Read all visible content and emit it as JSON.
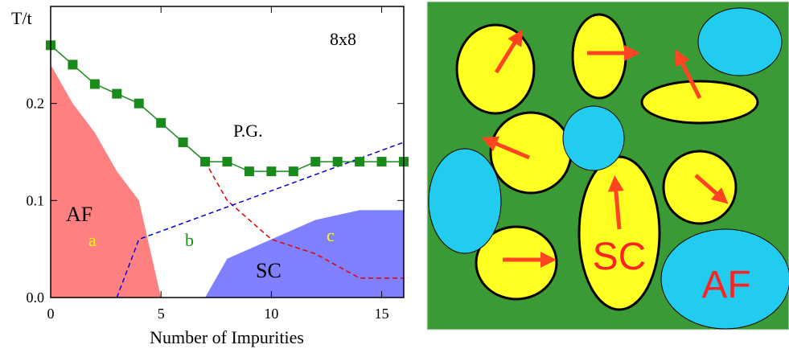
{
  "chart_data": {
    "type": "line",
    "ylabel": "T/t",
    "xlabel": "Number of Impurities",
    "xlim": [
      0,
      16
    ],
    "ylim": [
      0,
      0.3
    ],
    "xticks": [
      0,
      5,
      10,
      15
    ],
    "yticks": [
      {
        "value": 0,
        "label": "0.0"
      },
      0.1,
      0.2
    ],
    "series": [
      {
        "style": "area",
        "color": "#ff8080",
        "x": [
          0,
          0,
          1,
          2,
          3,
          4,
          5
        ],
        "values": [
          0,
          0.24,
          0.2,
          0.17,
          0.13,
          0.1,
          0
        ]
      },
      {
        "style": "area",
        "color": "#8080ff",
        "x": [
          7,
          8,
          10,
          12,
          14,
          16,
          16
        ],
        "values": [
          0,
          0.04,
          0.06,
          0.08,
          0.09,
          0.09,
          0
        ]
      },
      {
        "style": "dashed",
        "color": "#e00000",
        "x": [
          7,
          8,
          10,
          12,
          14,
          16
        ],
        "values": [
          0.14,
          0.1,
          0.06,
          0.045,
          0.02,
          0.02
        ]
      },
      {
        "style": "dashed",
        "color": "#0000dd",
        "x": [
          3,
          4,
          16
        ],
        "values": [
          0,
          0.06,
          0.16
        ]
      },
      {
        "style": "line-markers",
        "color": "#1a8a1a",
        "x": [
          0,
          1,
          2,
          3,
          4,
          5,
          6,
          7,
          8,
          9,
          10,
          11,
          12,
          13,
          14,
          15,
          16
        ],
        "values": [
          0.26,
          0.24,
          0.22,
          0.21,
          0.2,
          0.18,
          0.16,
          0.14,
          0.14,
          0.13,
          0.13,
          0.13,
          0.14,
          0.14,
          0.14,
          0.14,
          0.14
        ]
      }
    ],
    "annotations": [
      {
        "text": "8x8",
        "color": "#000000"
      },
      {
        "text": "P.G.",
        "color": "#000000"
      },
      {
        "text": "AF",
        "color": "#000000"
      },
      {
        "text": "a",
        "color": "#ffff00"
      },
      {
        "text": "b",
        "color": "#1a8a1a"
      },
      {
        "text": "c",
        "color": "#ffff00"
      },
      {
        "text": "SC",
        "color": "#000000"
      }
    ]
  },
  "schematic": {
    "labels": [
      "SC",
      "AF"
    ]
  }
}
